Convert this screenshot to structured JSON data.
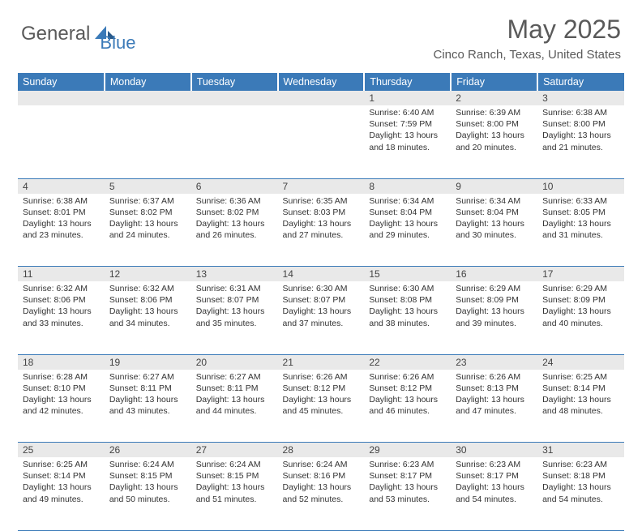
{
  "logo": {
    "part1": "General",
    "part2": "Blue"
  },
  "title": "May 2025",
  "location": "Cinco Ranch, Texas, United States",
  "colors": {
    "headerBg": "#3b7ab8",
    "headerText": "#ffffff",
    "dayNumBg": "#e9e9e9",
    "borderColor": "#3b7ab8",
    "pageBg": "#ffffff",
    "textColor": "#333333",
    "logoGray": "#5a5a5a",
    "logoBlue": "#3b7ab8"
  },
  "weekdays": [
    "Sunday",
    "Monday",
    "Tuesday",
    "Wednesday",
    "Thursday",
    "Friday",
    "Saturday"
  ],
  "weeks": [
    [
      null,
      null,
      null,
      null,
      {
        "d": "1",
        "sr": "6:40 AM",
        "ss": "7:59 PM",
        "dl": "13 hours and 18 minutes."
      },
      {
        "d": "2",
        "sr": "6:39 AM",
        "ss": "8:00 PM",
        "dl": "13 hours and 20 minutes."
      },
      {
        "d": "3",
        "sr": "6:38 AM",
        "ss": "8:00 PM",
        "dl": "13 hours and 21 minutes."
      }
    ],
    [
      {
        "d": "4",
        "sr": "6:38 AM",
        "ss": "8:01 PM",
        "dl": "13 hours and 23 minutes."
      },
      {
        "d": "5",
        "sr": "6:37 AM",
        "ss": "8:02 PM",
        "dl": "13 hours and 24 minutes."
      },
      {
        "d": "6",
        "sr": "6:36 AM",
        "ss": "8:02 PM",
        "dl": "13 hours and 26 minutes."
      },
      {
        "d": "7",
        "sr": "6:35 AM",
        "ss": "8:03 PM",
        "dl": "13 hours and 27 minutes."
      },
      {
        "d": "8",
        "sr": "6:34 AM",
        "ss": "8:04 PM",
        "dl": "13 hours and 29 minutes."
      },
      {
        "d": "9",
        "sr": "6:34 AM",
        "ss": "8:04 PM",
        "dl": "13 hours and 30 minutes."
      },
      {
        "d": "10",
        "sr": "6:33 AM",
        "ss": "8:05 PM",
        "dl": "13 hours and 31 minutes."
      }
    ],
    [
      {
        "d": "11",
        "sr": "6:32 AM",
        "ss": "8:06 PM",
        "dl": "13 hours and 33 minutes."
      },
      {
        "d": "12",
        "sr": "6:32 AM",
        "ss": "8:06 PM",
        "dl": "13 hours and 34 minutes."
      },
      {
        "d": "13",
        "sr": "6:31 AM",
        "ss": "8:07 PM",
        "dl": "13 hours and 35 minutes."
      },
      {
        "d": "14",
        "sr": "6:30 AM",
        "ss": "8:07 PM",
        "dl": "13 hours and 37 minutes."
      },
      {
        "d": "15",
        "sr": "6:30 AM",
        "ss": "8:08 PM",
        "dl": "13 hours and 38 minutes."
      },
      {
        "d": "16",
        "sr": "6:29 AM",
        "ss": "8:09 PM",
        "dl": "13 hours and 39 minutes."
      },
      {
        "d": "17",
        "sr": "6:29 AM",
        "ss": "8:09 PM",
        "dl": "13 hours and 40 minutes."
      }
    ],
    [
      {
        "d": "18",
        "sr": "6:28 AM",
        "ss": "8:10 PM",
        "dl": "13 hours and 42 minutes."
      },
      {
        "d": "19",
        "sr": "6:27 AM",
        "ss": "8:11 PM",
        "dl": "13 hours and 43 minutes."
      },
      {
        "d": "20",
        "sr": "6:27 AM",
        "ss": "8:11 PM",
        "dl": "13 hours and 44 minutes."
      },
      {
        "d": "21",
        "sr": "6:26 AM",
        "ss": "8:12 PM",
        "dl": "13 hours and 45 minutes."
      },
      {
        "d": "22",
        "sr": "6:26 AM",
        "ss": "8:12 PM",
        "dl": "13 hours and 46 minutes."
      },
      {
        "d": "23",
        "sr": "6:26 AM",
        "ss": "8:13 PM",
        "dl": "13 hours and 47 minutes."
      },
      {
        "d": "24",
        "sr": "6:25 AM",
        "ss": "8:14 PM",
        "dl": "13 hours and 48 minutes."
      }
    ],
    [
      {
        "d": "25",
        "sr": "6:25 AM",
        "ss": "8:14 PM",
        "dl": "13 hours and 49 minutes."
      },
      {
        "d": "26",
        "sr": "6:24 AM",
        "ss": "8:15 PM",
        "dl": "13 hours and 50 minutes."
      },
      {
        "d": "27",
        "sr": "6:24 AM",
        "ss": "8:15 PM",
        "dl": "13 hours and 51 minutes."
      },
      {
        "d": "28",
        "sr": "6:24 AM",
        "ss": "8:16 PM",
        "dl": "13 hours and 52 minutes."
      },
      {
        "d": "29",
        "sr": "6:23 AM",
        "ss": "8:17 PM",
        "dl": "13 hours and 53 minutes."
      },
      {
        "d": "30",
        "sr": "6:23 AM",
        "ss": "8:17 PM",
        "dl": "13 hours and 54 minutes."
      },
      {
        "d": "31",
        "sr": "6:23 AM",
        "ss": "8:18 PM",
        "dl": "13 hours and 54 minutes."
      }
    ]
  ],
  "labels": {
    "sunrise": "Sunrise:",
    "sunset": "Sunset:",
    "daylight": "Daylight:"
  }
}
